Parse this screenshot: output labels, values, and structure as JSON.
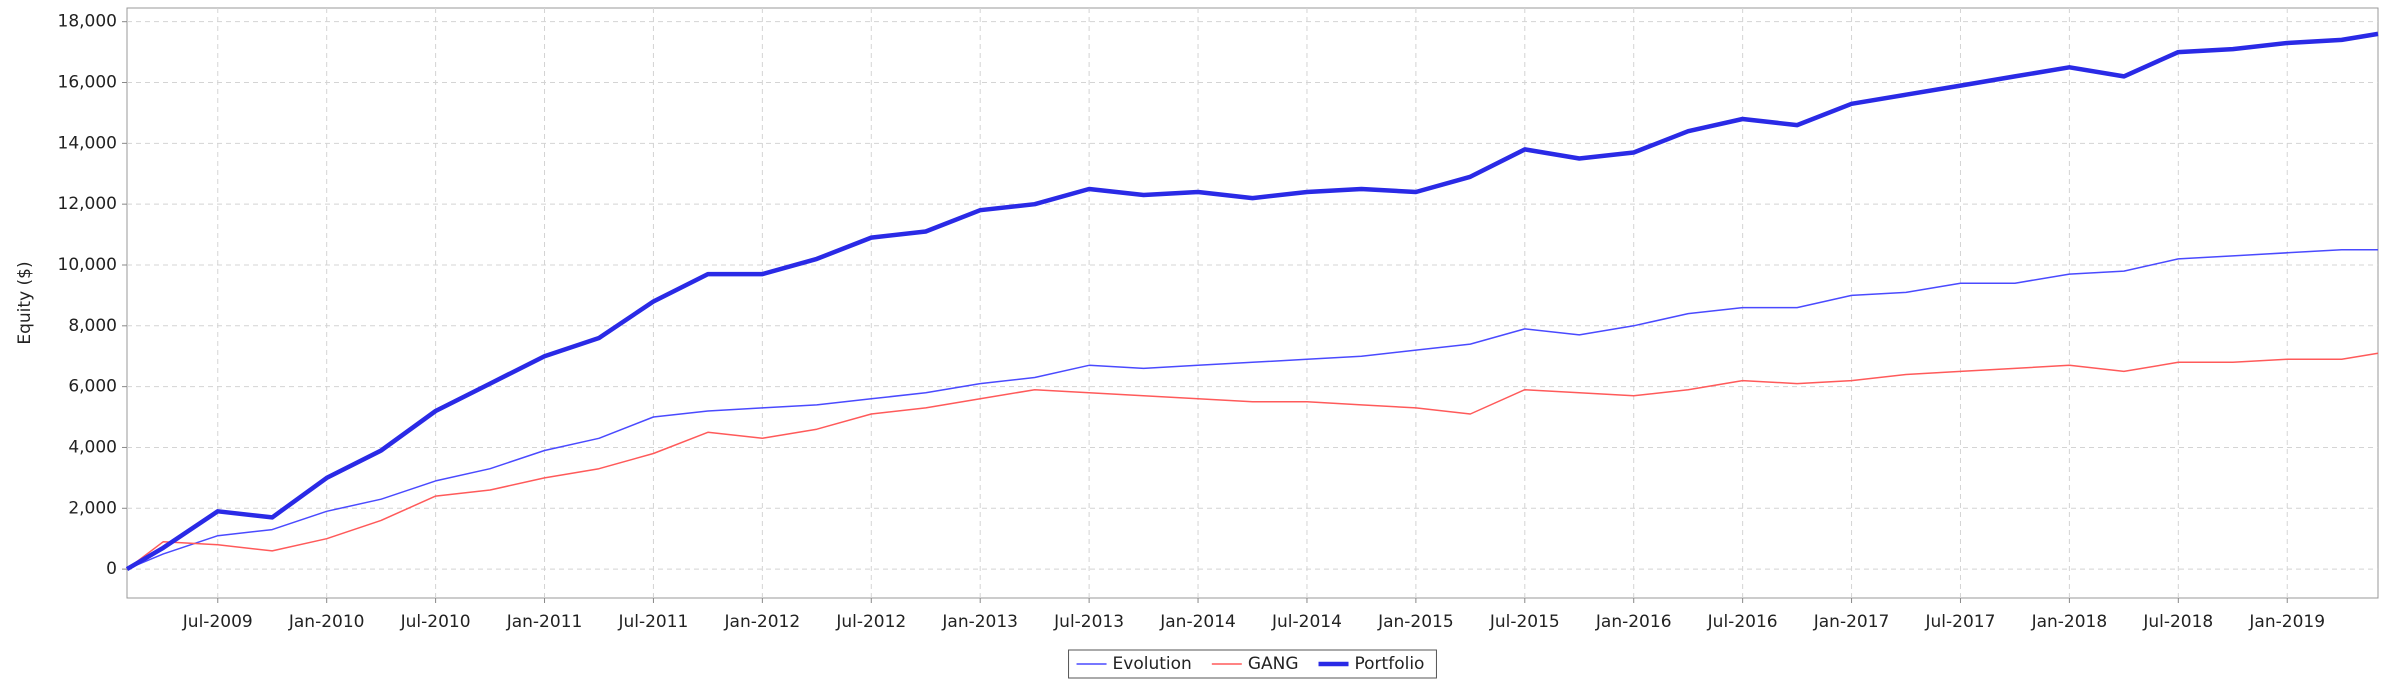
{
  "chart_data": {
    "type": "line",
    "y_label": "Equity ($)",
    "x": [
      "2009-02",
      "2009-04",
      "2009-07",
      "2009-10",
      "2010-01",
      "2010-04",
      "2010-07",
      "2010-10",
      "2011-01",
      "2011-04",
      "2011-07",
      "2011-10",
      "2012-01",
      "2012-04",
      "2012-07",
      "2012-10",
      "2013-01",
      "2013-04",
      "2013-07",
      "2013-10",
      "2014-01",
      "2014-04",
      "2014-07",
      "2014-10",
      "2015-01",
      "2015-04",
      "2015-07",
      "2015-10",
      "2016-01",
      "2016-04",
      "2016-07",
      "2016-10",
      "2017-01",
      "2017-04",
      "2017-07",
      "2017-10",
      "2018-01",
      "2018-04",
      "2018-07",
      "2018-10",
      "2019-01",
      "2019-04",
      "2019-06"
    ],
    "series": [
      {
        "name": "Evolution",
        "color": "#4a4aff",
        "line_width": 1,
        "values": [
          0,
          500,
          1100,
          1300,
          1900,
          2300,
          2900,
          3300,
          3900,
          4300,
          5000,
          5200,
          5300,
          5400,
          5600,
          5800,
          6100,
          6300,
          6700,
          6600,
          6700,
          6800,
          6900,
          7000,
          7200,
          7400,
          7900,
          7700,
          8000,
          8400,
          8600,
          8600,
          9000,
          9100,
          9400,
          9400,
          9700,
          9800,
          10200,
          10300,
          10400,
          10500,
          10500
        ]
      },
      {
        "name": "GANG",
        "color": "#ff5a5a",
        "line_width": 1,
        "values": [
          0,
          900,
          800,
          600,
          1000,
          1600,
          2400,
          2600,
          3000,
          3300,
          3800,
          4500,
          4300,
          4600,
          5100,
          5300,
          5600,
          5900,
          5800,
          5700,
          5600,
          5500,
          5500,
          5400,
          5300,
          5100,
          5900,
          5800,
          5700,
          5900,
          6200,
          6100,
          6200,
          6400,
          6500,
          6600,
          6700,
          6500,
          6800,
          6800,
          6900,
          6900,
          7100
        ]
      },
      {
        "name": "Portfolio",
        "color": "#2a2ae6",
        "line_width": 3,
        "values": [
          0,
          700,
          1900,
          1700,
          3000,
          3900,
          5200,
          6100,
          7000,
          7600,
          8800,
          9700,
          9700,
          10200,
          10900,
          11100,
          11800,
          12000,
          12500,
          12300,
          12400,
          12200,
          12400,
          12500,
          12400,
          12900,
          13800,
          13500,
          13700,
          14400,
          14800,
          14600,
          15300,
          15600,
          15900,
          16200,
          16500,
          16200,
          17000,
          17100,
          17300,
          17400,
          17600
        ]
      }
    ],
    "xlim": [
      "2009-02",
      "2019-06"
    ],
    "xticks": [
      {
        "value": "2009-07",
        "label": "Jul-2009"
      },
      {
        "value": "2010-01",
        "label": "Jan-2010"
      },
      {
        "value": "2010-07",
        "label": "Jul-2010"
      },
      {
        "value": "2011-01",
        "label": "Jan-2011"
      },
      {
        "value": "2011-07",
        "label": "Jul-2011"
      },
      {
        "value": "2012-01",
        "label": "Jan-2012"
      },
      {
        "value": "2012-07",
        "label": "Jul-2012"
      },
      {
        "value": "2013-01",
        "label": "Jan-2013"
      },
      {
        "value": "2013-07",
        "label": "Jul-2013"
      },
      {
        "value": "2014-01",
        "label": "Jan-2014"
      },
      {
        "value": "2014-07",
        "label": "Jul-2014"
      },
      {
        "value": "2015-01",
        "label": "Jan-2015"
      },
      {
        "value": "2015-07",
        "label": "Jul-2015"
      },
      {
        "value": "2016-01",
        "label": "Jan-2016"
      },
      {
        "value": "2016-07",
        "label": "Jul-2016"
      },
      {
        "value": "2017-01",
        "label": "Jan-2017"
      },
      {
        "value": "2017-07",
        "label": "Jul-2017"
      },
      {
        "value": "2018-01",
        "label": "Jan-2018"
      },
      {
        "value": "2018-07",
        "label": "Jul-2018"
      },
      {
        "value": "2019-01",
        "label": "Jan-2019"
      }
    ],
    "ylim": [
      -950,
      18450
    ],
    "yticks": [
      0,
      {
        "value": 2000,
        "label": "2,000"
      },
      {
        "value": 4000,
        "label": "4,000"
      },
      {
        "value": 6000,
        "label": "6,000"
      },
      {
        "value": 8000,
        "label": "8,000"
      },
      {
        "value": 10000,
        "label": "10,000"
      },
      {
        "value": 12000,
        "label": "12,000"
      },
      {
        "value": 14000,
        "label": "14,000"
      },
      {
        "value": 16000,
        "label": "16,000"
      },
      {
        "value": 18000,
        "label": "18,000"
      }
    ],
    "grid": true,
    "legend": "bottom"
  }
}
